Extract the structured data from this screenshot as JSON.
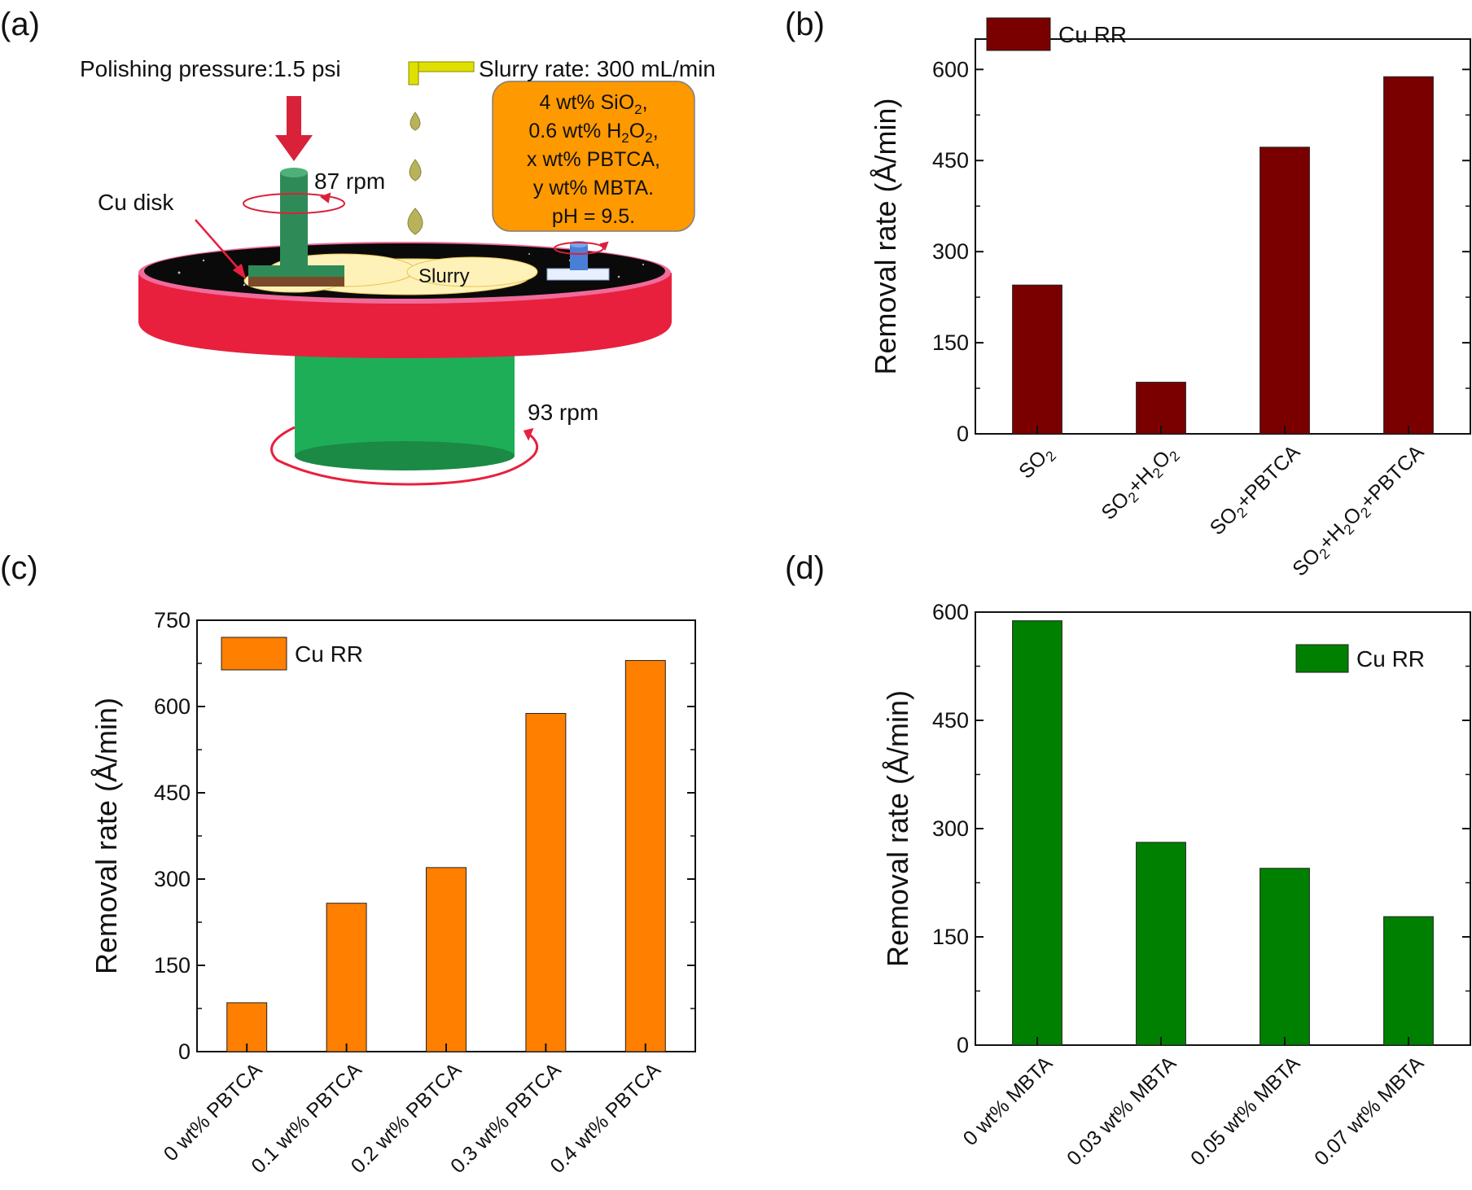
{
  "panels": {
    "a": {
      "label": "(a)"
    },
    "b": {
      "label": "(b)"
    },
    "c": {
      "label": "(c)"
    },
    "d": {
      "label": "(d)"
    }
  },
  "schematic": {
    "pressure_label": "Polishing pressure:1.5 psi",
    "slurry_rate_label": "Slurry rate: 300 mL/min",
    "recipe": {
      "line1_main": "4 wt% SiO",
      "line1_sub": "2",
      "line1_tail": ",",
      "line2_main": "0.6 wt% H",
      "line2_sub1": "2",
      "line2_mid": "O",
      "line2_sub2": "2",
      "line2_tail": ",",
      "line3": "x wt% PBTCA,",
      "line4": "y wt% MBTA.",
      "line5": "pH = 9.5."
    },
    "carrier_rpm_label": "87 rpm",
    "platen_rpm_label": "93 rpm",
    "cu_disk_label": "Cu disk",
    "slurry_label": "Slurry",
    "colors": {
      "platen": "#e8203e",
      "pad": "#111111",
      "spindle": "#2e8b57",
      "base": "#22b058",
      "recipe_box": "#ff9900",
      "arrow": "#d9213a"
    }
  },
  "chart_data": [
    {
      "id": "b",
      "type": "bar",
      "categories": [
        {
          "parts": [
            [
              "SO",
              0
            ],
            [
              "2",
              1
            ]
          ]
        },
        {
          "parts": [
            [
              "SO",
              0
            ],
            [
              "2",
              1
            ],
            [
              "+H",
              0
            ],
            [
              "2",
              1
            ],
            [
              "O",
              0
            ],
            [
              "2",
              1
            ]
          ]
        },
        {
          "parts": [
            [
              "SO",
              0
            ],
            [
              "2",
              1
            ],
            [
              "+PBTCA",
              0
            ]
          ]
        },
        {
          "parts": [
            [
              "SO",
              0
            ],
            [
              "2",
              1
            ],
            [
              "+H",
              0
            ],
            [
              "2",
              1
            ],
            [
              "O",
              0
            ],
            [
              "2",
              1
            ],
            [
              "+PBTCA",
              0
            ]
          ]
        }
      ],
      "values": [
        245,
        85,
        472,
        588
      ],
      "ylabel": "Removal rate (Å/min)",
      "ylim": [
        0,
        650
      ],
      "yticks": [
        0,
        150,
        300,
        450,
        600
      ],
      "legend": "Cu RR",
      "legend_position": "top-left",
      "color": "#7a0000"
    },
    {
      "id": "c",
      "type": "bar",
      "categories": [
        {
          "parts": [
            [
              "0 wt% PBTCA",
              0
            ]
          ]
        },
        {
          "parts": [
            [
              "0.1 wt% PBTCA",
              0
            ]
          ]
        },
        {
          "parts": [
            [
              "0.2 wt% PBTCA",
              0
            ]
          ]
        },
        {
          "parts": [
            [
              "0.3 wt% PBTCA",
              0
            ]
          ]
        },
        {
          "parts": [
            [
              "0.4 wt% PBTCA",
              0
            ]
          ]
        }
      ],
      "values": [
        85,
        258,
        320,
        588,
        680
      ],
      "ylabel": "Removal rate (Å/min)",
      "ylim": [
        0,
        750
      ],
      "yticks": [
        0,
        150,
        300,
        450,
        600,
        750
      ],
      "legend": "Cu RR",
      "legend_position": "top-left",
      "color": "#ff7f00"
    },
    {
      "id": "d",
      "type": "bar",
      "categories": [
        {
          "parts": [
            [
              "0 wt% MBTA",
              0
            ]
          ]
        },
        {
          "parts": [
            [
              "0.03 wt% MBTA",
              0
            ]
          ]
        },
        {
          "parts": [
            [
              "0.05 wt% MBTA",
              0
            ]
          ]
        },
        {
          "parts": [
            [
              "0.07 wt% MBTA",
              0
            ]
          ]
        }
      ],
      "values": [
        588,
        281,
        245,
        178
      ],
      "ylabel": "Removal rate (Å/min)",
      "ylim": [
        0,
        600
      ],
      "yticks": [
        0,
        150,
        300,
        450,
        600
      ],
      "legend": "Cu RR",
      "legend_position": "top-right",
      "color": "#008000"
    }
  ]
}
